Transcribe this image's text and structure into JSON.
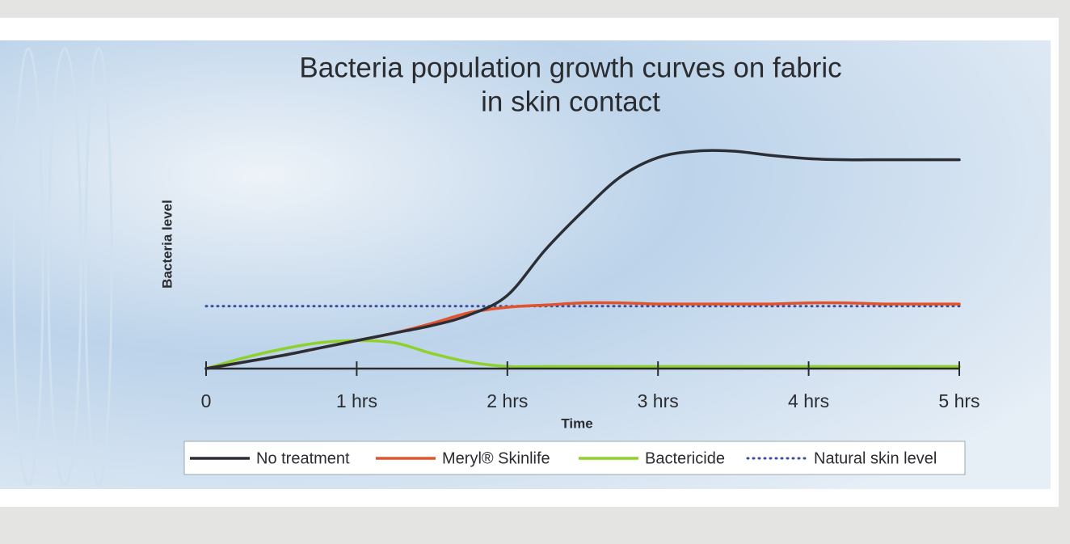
{
  "chart_data": {
    "type": "line",
    "title": [
      "Bacteria population growth curves on fabric",
      "in skin contact"
    ],
    "x_label": "Time",
    "y_label": "Bacteria level",
    "x": [
      0,
      0.25,
      0.5,
      0.75,
      1,
      1.25,
      1.5,
      1.75,
      2,
      2.25,
      2.5,
      2.75,
      3,
      3.25,
      3.5,
      3.75,
      4,
      4.25,
      4.5,
      4.75,
      5
    ],
    "xlim": [
      0,
      5
    ],
    "xticks": [
      0,
      {
        "value": 1,
        "label": "1 hrs"
      },
      {
        "value": 2,
        "label": "2 hrs"
      },
      {
        "value": 3,
        "label": "3 hrs"
      },
      {
        "value": 4,
        "label": "4 hrs"
      },
      {
        "value": 5,
        "label": "5 hrs"
      }
    ],
    "ylim": [
      0,
      110
    ],
    "legend": "bottom",
    "series": [
      {
        "name": "No treatment",
        "color": "#2b2e35",
        "style": "solid",
        "values": [
          0,
          3,
          6,
          9.5,
          13,
          16.5,
          20,
          25,
          34,
          55,
          73,
          89,
          98,
          101,
          101,
          99,
          97.5,
          97,
          97,
          97,
          97
        ]
      },
      {
        "name": "Meryl® Skinlife",
        "color": "#e2532b",
        "style": "solid",
        "values": [
          0,
          3,
          6,
          9.5,
          13,
          16.5,
          21,
          26,
          28.5,
          29.5,
          30.5,
          30.5,
          30,
          30,
          30,
          30,
          30.5,
          30.5,
          30,
          30,
          30
        ]
      },
      {
        "name": "Bactericide",
        "color": "#8fd12c",
        "style": "solid",
        "values": [
          0,
          5,
          9,
          12,
          13,
          12,
          7,
          3,
          1,
          1,
          1,
          1,
          1,
          1,
          1,
          1,
          1,
          1,
          1,
          1,
          1
        ]
      },
      {
        "name": "Natural skin level",
        "color": "#3c4c9e",
        "style": "dotted",
        "values": [
          29,
          29,
          29,
          29,
          29,
          29,
          29,
          29,
          29,
          29,
          29,
          29,
          29,
          29,
          29,
          29,
          29,
          29,
          29,
          29,
          29
        ]
      }
    ]
  }
}
